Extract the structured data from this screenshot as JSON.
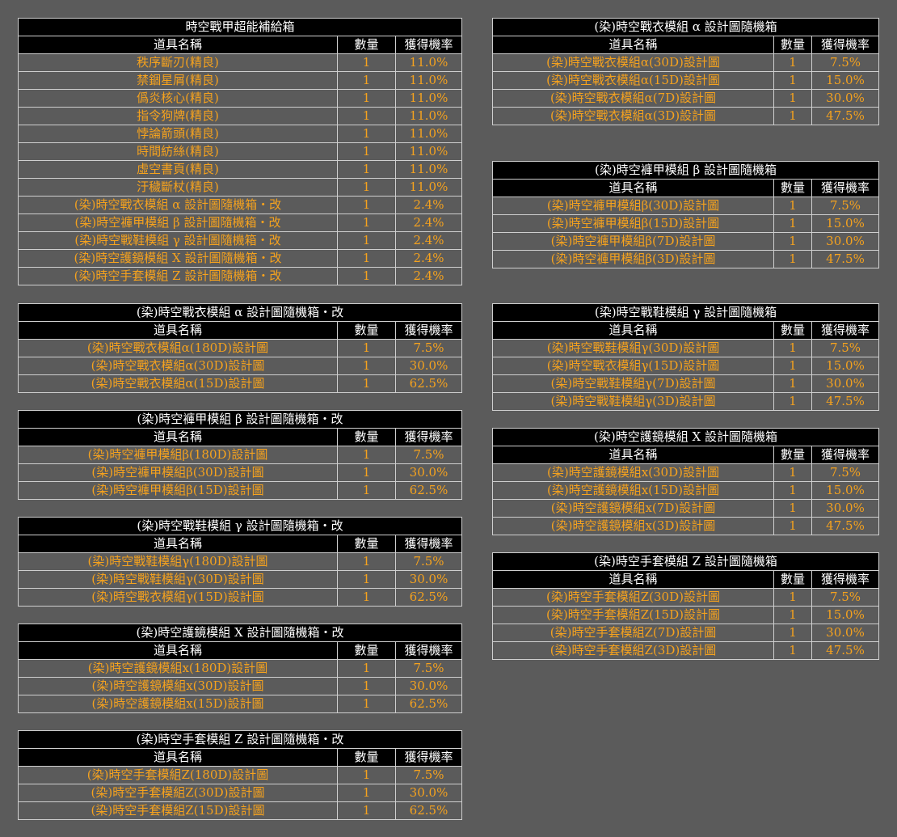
{
  "headers": {
    "name": "道具名稱",
    "qty": "數量",
    "rate": "獲得機率"
  },
  "left": [
    {
      "title": "時空戰甲超能補給箱",
      "rows": [
        [
          "秩序斷刃(精良)",
          "1",
          "11.0%"
        ],
        [
          "禁錮星屑(精良)",
          "1",
          "11.0%"
        ],
        [
          "僞炎核心(精良)",
          "1",
          "11.0%"
        ],
        [
          "指令狗牌(精良)",
          "1",
          "11.0%"
        ],
        [
          "悖論箭頭(精良)",
          "1",
          "11.0%"
        ],
        [
          "時間紡絲(精良)",
          "1",
          "11.0%"
        ],
        [
          "虛空書頁(精良)",
          "1",
          "11.0%"
        ],
        [
          "汙穢斷杖(精良)",
          "1",
          "11.0%"
        ],
        [
          "(染)時空戰衣模組 α 設計圖隨機箱・改",
          "1",
          "2.4%"
        ],
        [
          "(染)時空褲甲模組 β 設計圖隨機箱・改",
          "1",
          "2.4%"
        ],
        [
          "(染)時空戰鞋模組 γ 設計圖隨機箱・改",
          "1",
          "2.4%"
        ],
        [
          "(染)時空護鏡模組 X 設計圖隨機箱・改",
          "1",
          "2.4%"
        ],
        [
          "(染)時空手套模組 Z 設計圖隨機箱・改",
          "1",
          "2.4%"
        ]
      ]
    },
    {
      "title": "(染)時空戰衣模組 α 設計圖隨機箱・改",
      "rows": [
        [
          "(染)時空戰衣模組α(180D)設計圖",
          "1",
          "7.5%"
        ],
        [
          "(染)時空戰衣模組α(30D)設計圖",
          "1",
          "30.0%"
        ],
        [
          "(染)時空戰衣模組α(15D)設計圖",
          "1",
          "62.5%"
        ]
      ]
    },
    {
      "title": "(染)時空褲甲模組 β 設計圖隨機箱・改",
      "rows": [
        [
          "(染)時空褲甲模組β(180D)設計圖",
          "1",
          "7.5%"
        ],
        [
          "(染)時空褲甲模組β(30D)設計圖",
          "1",
          "30.0%"
        ],
        [
          "(染)時空褲甲模組β(15D)設計圖",
          "1",
          "62.5%"
        ]
      ]
    },
    {
      "title": "(染)時空戰鞋模組 γ 設計圖隨機箱・改",
      "rows": [
        [
          "(染)時空戰鞋模組γ(180D)設計圖",
          "1",
          "7.5%"
        ],
        [
          "(染)時空戰鞋模組γ(30D)設計圖",
          "1",
          "30.0%"
        ],
        [
          "(染)時空戰衣模組γ(15D)設計圖",
          "1",
          "62.5%"
        ]
      ]
    },
    {
      "title": "(染)時空護鏡模組 X 設計圖隨機箱・改",
      "rows": [
        [
          "(染)時空護鏡模組x(180D)設計圖",
          "1",
          "7.5%"
        ],
        [
          "(染)時空護鏡模組x(30D)設計圖",
          "1",
          "30.0%"
        ],
        [
          "(染)時空護鏡模組x(15D)設計圖",
          "1",
          "62.5%"
        ]
      ]
    },
    {
      "title": "(染)時空手套模組 Z 設計圖隨機箱・改",
      "rows": [
        [
          "(染)時空手套模組Z(180D)設計圖",
          "1",
          "7.5%"
        ],
        [
          "(染)時空手套模組Z(30D)設計圖",
          "1",
          "30.0%"
        ],
        [
          "(染)時空手套模組Z(15D)設計圖",
          "1",
          "62.5%"
        ]
      ]
    }
  ],
  "right": [
    {
      "title": "(染)時空戰衣模組 α 設計圖隨機箱",
      "rows": [
        [
          "(染)時空戰衣模組α(30D)設計圖",
          "1",
          "7.5%"
        ],
        [
          "(染)時空戰衣模組α(15D)設計圖",
          "1",
          "15.0%"
        ],
        [
          "(染)時空戰衣模組α(7D)設計圖",
          "1",
          "30.0%"
        ],
        [
          "(染)時空戰衣模組α(3D)設計圖",
          "1",
          "47.5%"
        ]
      ]
    },
    {
      "title": "(染)時空褲甲模組 β 設計圖隨機箱",
      "rows": [
        [
          "(染)時空褲甲模組β(30D)設計圖",
          "1",
          "7.5%"
        ],
        [
          "(染)時空褲甲模組β(15D)設計圖",
          "1",
          "15.0%"
        ],
        [
          "(染)時空褲甲模組β(7D)設計圖",
          "1",
          "30.0%"
        ],
        [
          "(染)時空褲甲模組β(3D)設計圖",
          "1",
          "47.5%"
        ]
      ]
    },
    {
      "title": "(染)時空戰鞋模組 γ 設計圖隨機箱",
      "rows": [
        [
          "(染)時空戰鞋模組γ(30D)設計圖",
          "1",
          "7.5%"
        ],
        [
          "(染)時空戰衣模組γ(15D)設計圖",
          "1",
          "15.0%"
        ],
        [
          "(染)時空戰鞋模組γ(7D)設計圖",
          "1",
          "30.0%"
        ],
        [
          "(染)時空戰鞋模組γ(3D)設計圖",
          "1",
          "47.5%"
        ]
      ]
    },
    {
      "title": "(染)時空護鏡模組 X 設計圖隨機箱",
      "rows": [
        [
          "(染)時空護鏡模組x(30D)設計圖",
          "1",
          "7.5%"
        ],
        [
          "(染)時空護鏡模組x(15D)設計圖",
          "1",
          "15.0%"
        ],
        [
          "(染)時空護鏡模組x(7D)設計圖",
          "1",
          "30.0%"
        ],
        [
          "(染)時空護鏡模組x(3D)設計圖",
          "1",
          "47.5%"
        ]
      ]
    },
    {
      "title": "(染)時空手套模組 Z 設計圖隨機箱",
      "rows": [
        [
          "(染)時空手套模組Z(30D)設計圖",
          "1",
          "7.5%"
        ],
        [
          "(染)時空手套模組Z(15D)設計圖",
          "1",
          "15.0%"
        ],
        [
          "(染)時空手套模組Z(7D)設計圖",
          "1",
          "30.0%"
        ],
        [
          "(染)時空手套模組Z(3D)設計圖",
          "1",
          "47.5%"
        ]
      ]
    }
  ]
}
